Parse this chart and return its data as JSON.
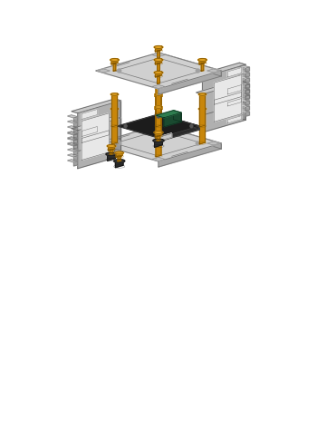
{
  "bg_color": "#ffffff",
  "plate_top_color": "#d0d0d0",
  "plate_side_color": "#a8a8a8",
  "plate_edge_color": "#787878",
  "standoff_body": "#c8860a",
  "standoff_dark": "#7a5000",
  "standoff_top": "#e0a020",
  "screw_body": "#c8860a",
  "screw_dark": "#7a5000",
  "screw_head": "#e0a020",
  "pcb_top": "#1c1c1c",
  "pcb_side": "#2a2a2a",
  "pcb_edge": "#444444",
  "comp_top": "#2e7d4f",
  "comp_side": "#1a4a30",
  "comp_edge": "#0d2e1e",
  "conn_color": "#888888",
  "panel_top": "#c8c8c8",
  "panel_front": "#b0b0b0",
  "panel_side": "#989898",
  "panel_edge": "#686868",
  "panel_notch": "#a0a0a0",
  "rubber_color": "#2a2a2a",
  "rubber_top": "#3a3a3a"
}
